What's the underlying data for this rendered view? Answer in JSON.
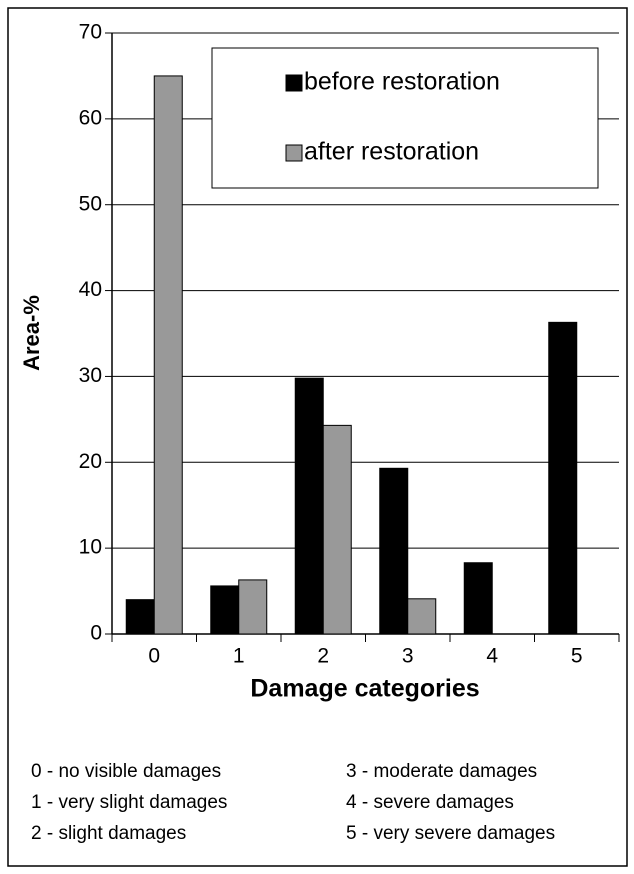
{
  "chart_data": {
    "type": "bar",
    "x_label": "Damage categories",
    "y_label": "Area-%",
    "categories": [
      "0",
      "1",
      "2",
      "3",
      "4",
      "5"
    ],
    "series": [
      {
        "name": "before restoration",
        "color": "#000000",
        "values": [
          4,
          5.6,
          29.8,
          19.3,
          8.3,
          36.3
        ]
      },
      {
        "name": "after restoration",
        "color": "#999999",
        "values": [
          65,
          6.3,
          24.3,
          4.1,
          0,
          0
        ]
      }
    ],
    "ylim": [
      0,
      70
    ],
    "yticks": [
      0,
      10,
      20,
      30,
      40,
      50,
      60,
      70
    ],
    "grid": true,
    "notes": [
      "0 - no visible damages",
      "1 - very slight damages",
      "2 - slight damages",
      "3 - moderate damages",
      "4 - severe damages",
      "5 - very severe damages"
    ]
  }
}
